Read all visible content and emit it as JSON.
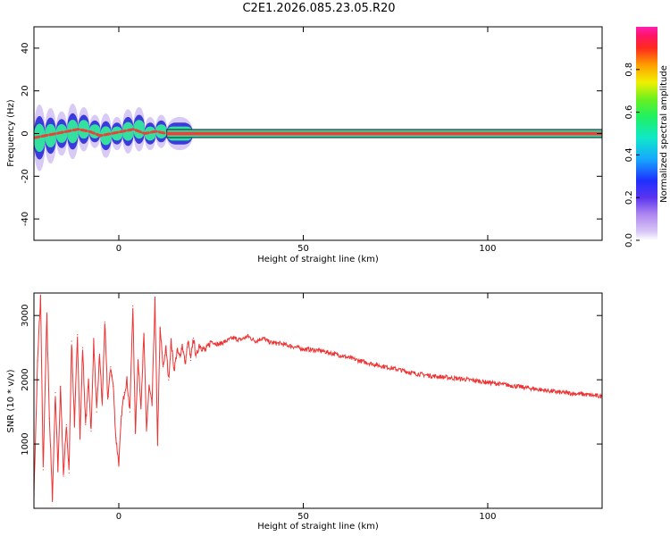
{
  "title": "C2E1.2026.085.23.05.R20",
  "colors": {
    "trace": "#ee3333",
    "axis": "#000000",
    "band_outline": "#1e3a4a",
    "band_core": "#e8433a",
    "band_mid": "#34e0a0",
    "band_edge": "#2a2ad8",
    "band_halo": "#c8b4f0"
  },
  "chart_data": [
    {
      "type": "heatmap",
      "name": "spectrogram",
      "xlabel": "Height of straight line (km)",
      "ylabel": "Frequency (Hz)",
      "xlim": [
        -23,
        131
      ],
      "ylim": [
        -50,
        50
      ],
      "xticks": [
        0,
        50,
        100
      ],
      "yticks": [
        40,
        20,
        0,
        -20,
        -40
      ],
      "ytick_labels": [
        "40",
        "20",
        "0",
        "-20",
        "-40"
      ],
      "ridge": {
        "description": "dominant frequency ridge, normalized amplitude ~1 along near-zero frequency",
        "x": [
          -23,
          -20,
          -17,
          -14,
          -11,
          -8,
          -5,
          -2,
          1,
          4,
          7,
          10,
          13,
          20,
          40,
          60,
          80,
          100,
          131
        ],
        "hz": [
          -2,
          -1,
          0,
          1,
          2,
          1,
          -1,
          0,
          1,
          2,
          0,
          1,
          0,
          0,
          0,
          0,
          0,
          0,
          0
        ],
        "spread_hz": [
          6,
          5,
          4,
          5,
          4,
          3,
          4,
          3,
          4,
          4,
          3,
          3,
          3,
          1.5,
          1.5,
          1.5,
          1.5,
          1.5,
          1.5
        ]
      },
      "colorbar": {
        "label": "Normalized spectral amplitude",
        "range": [
          0,
          1
        ],
        "ticks": [
          0.0,
          0.2,
          0.4,
          0.6,
          0.8
        ],
        "tick_labels": [
          "0.0",
          "0.2",
          "0.4",
          "0.6",
          "0.8"
        ]
      }
    },
    {
      "type": "line",
      "name": "snr",
      "xlabel": "Height of straight line (km)",
      "ylabel": "SNR (10 * v/v)",
      "xlim": [
        -23,
        131
      ],
      "ylim": [
        0,
        3350
      ],
      "xticks": [
        0,
        50,
        100
      ],
      "yticks": [
        1000,
        2000,
        3000
      ],
      "ytick_labels": [
        "1000",
        "2000",
        "3000"
      ],
      "series": [
        {
          "name": "SNR",
          "x": [
            -23,
            -22,
            -21.2,
            -20.5,
            -19.5,
            -18.8,
            -18,
            -17.2,
            -16.5,
            -15.8,
            -15,
            -14.2,
            -13.5,
            -12.8,
            -12,
            -11.2,
            -10.5,
            -9.8,
            -9,
            -8.2,
            -7.5,
            -6.8,
            -6,
            -5.2,
            -4.5,
            -3.8,
            -3,
            -2.2,
            -1.5,
            -0.8,
            0,
            0.8,
            1.5,
            2.2,
            3,
            3.8,
            4.5,
            5.2,
            6,
            6.8,
            7.5,
            8.2,
            9,
            9.8,
            10.5,
            11.2,
            12,
            12.8,
            13.5,
            14.2,
            15,
            15.8,
            16.5,
            17.2,
            18,
            18.8,
            19.5,
            20.2,
            21,
            21.8,
            22.5,
            23.5,
            25,
            27,
            29,
            31,
            33,
            35,
            37,
            39,
            41,
            44,
            47,
            50,
            55,
            60,
            65,
            70,
            75,
            80,
            85,
            90,
            95,
            100,
            105,
            110,
            115,
            120,
            125,
            131
          ],
          "values": [
            200,
            2300,
            3300,
            600,
            3000,
            1400,
            150,
            1800,
            600,
            1900,
            500,
            1300,
            550,
            2600,
            1300,
            2700,
            1100,
            2500,
            1300,
            2000,
            1200,
            2600,
            1500,
            2400,
            1600,
            2900,
            1700,
            2200,
            1900,
            1100,
            700,
            1500,
            1800,
            2000,
            1500,
            3150,
            1200,
            2300,
            1600,
            2700,
            1200,
            1900,
            1600,
            3250,
            1000,
            2800,
            2200,
            2500,
            2000,
            2600,
            2150,
            2450,
            2350,
            2550,
            2250,
            2600,
            2300,
            2650,
            2350,
            2550,
            2500,
            2450,
            2600,
            2550,
            2600,
            2650,
            2620,
            2680,
            2600,
            2650,
            2580,
            2560,
            2520,
            2480,
            2450,
            2380,
            2300,
            2230,
            2170,
            2100,
            2060,
            2030,
            2000,
            1960,
            1920,
            1880,
            1840,
            1800,
            1780,
            1740
          ]
        }
      ]
    }
  ]
}
